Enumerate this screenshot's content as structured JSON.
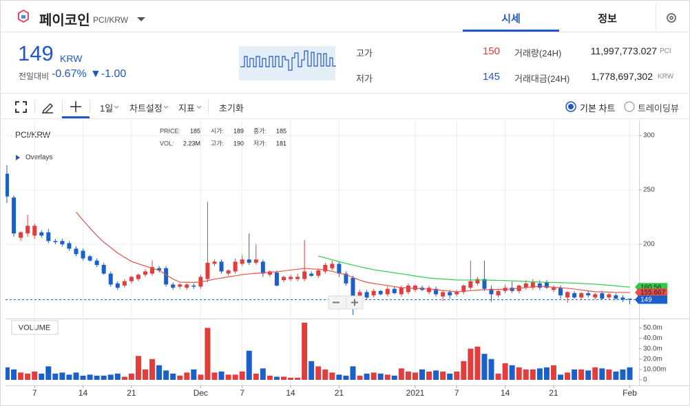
{
  "header": {
    "name": "페이코인",
    "pair": "PCI/KRW",
    "tabs": [
      "시세",
      "정보"
    ]
  },
  "ticker": {
    "price": 149,
    "unit": "KRW",
    "change_label": "전일대비",
    "change_pct": "-0.67%",
    "change_amt": "▼-1.00",
    "stats": [
      {
        "label": "고가",
        "value": 150,
        "color": "#e03b3b"
      },
      {
        "label": "저가",
        "value": 145,
        "color": "#1f56c9"
      }
    ],
    "volume": [
      {
        "label": "거래량(24H)",
        "value": "11,997,773.027",
        "unit": "PCI"
      },
      {
        "label": "거래대금(24H)",
        "value": "1,778,697,302",
        "unit": "KRW"
      }
    ]
  },
  "toolbar": {
    "menus": [
      "1일",
      "차트설정",
      "지표"
    ],
    "reset": "초기화",
    "modes": [
      "기본 차트",
      "트레이딩뷰"
    ],
    "selected_mode": 0
  },
  "chart_data": {
    "type": "candlestick",
    "title": "PCI/KRW",
    "overlays_label": "Overlays",
    "info": [
      {
        "label": "PRICE:",
        "value": 185
      },
      {
        "label": "시가:",
        "value": 189
      },
      {
        "label": "종가:",
        "value": 185
      },
      {
        "label": "VOL:",
        "value": "2.23M"
      },
      {
        "label": "고가:",
        "value": 190
      },
      {
        "label": "저가:",
        "value": 181
      }
    ],
    "categories": [
      null,
      null,
      null,
      null,
      "7",
      null,
      null,
      null,
      null,
      null,
      null,
      "14",
      null,
      null,
      null,
      null,
      null,
      null,
      "21",
      null,
      null,
      null,
      null,
      null,
      null,
      null,
      null,
      null,
      "Dec",
      null,
      null,
      null,
      null,
      null,
      "7",
      null,
      null,
      null,
      null,
      null,
      null,
      "14",
      null,
      null,
      null,
      null,
      null,
      null,
      "21",
      null,
      null,
      null,
      null,
      null,
      null,
      null,
      null,
      null,
      null,
      "2021",
      null,
      null,
      null,
      null,
      null,
      "7",
      null,
      null,
      null,
      null,
      null,
      null,
      "14",
      null,
      null,
      null,
      null,
      null,
      null,
      "21",
      null,
      null,
      null,
      null,
      null,
      null,
      null,
      null,
      null,
      null,
      "Feb"
    ],
    "open": [
      265,
      243,
      206,
      210,
      208,
      211,
      211,
      203,
      203,
      201,
      196,
      194,
      189,
      185,
      181,
      173,
      164,
      162,
      166,
      168,
      172,
      173,
      178,
      178,
      163,
      161,
      160,
      162,
      161,
      168,
      182,
      184,
      173,
      175,
      182,
      186,
      183,
      184,
      172,
      174,
      167,
      168,
      168,
      168,
      173,
      171,
      175,
      178,
      182,
      173,
      169,
      151,
      156,
      153,
      157,
      154,
      159,
      154,
      156,
      158,
      160,
      156,
      159,
      152,
      156,
      154,
      156,
      160,
      164,
      168,
      159,
      153,
      157,
      160,
      157,
      160,
      160,
      164,
      165,
      158,
      160,
      151,
      155,
      151,
      155,
      151,
      155,
      151,
      153,
      151,
      150
    ],
    "high": [
      273,
      245,
      212,
      227,
      219,
      213,
      214,
      205,
      205,
      203,
      198,
      196,
      190,
      187,
      183,
      175,
      166,
      168,
      171,
      173,
      177,
      185,
      180,
      180,
      165,
      164,
      164,
      164,
      172,
      239,
      186,
      186,
      177,
      187,
      190,
      210,
      200,
      186,
      176,
      176,
      171,
      172,
      173,
      204,
      175,
      178,
      183,
      185,
      184,
      175,
      171,
      158,
      158,
      159,
      158,
      161,
      161,
      162,
      164,
      163,
      162,
      162,
      161,
      158,
      158,
      158,
      163,
      185,
      170,
      185,
      162,
      158,
      163,
      166,
      163,
      167,
      168,
      167,
      167,
      162,
      162,
      157,
      157,
      156,
      157,
      155,
      157,
      155,
      155,
      153,
      150
    ],
    "low": [
      238,
      207,
      203,
      207,
      205,
      206,
      201,
      200,
      198,
      194,
      189,
      185,
      184,
      179,
      172,
      161,
      158,
      160,
      164,
      166,
      170,
      171,
      174,
      161,
      158,
      159,
      158,
      159,
      159,
      165,
      180,
      173,
      171,
      173,
      180,
      181,
      181,
      170,
      170,
      161,
      165,
      166,
      166,
      166,
      170,
      169,
      173,
      176,
      170,
      162,
      135,
      149,
      149,
      151,
      153,
      152,
      154,
      152,
      154,
      156,
      157,
      154,
      152,
      148,
      150,
      152,
      154,
      158,
      162,
      157,
      147,
      151,
      155,
      155,
      155,
      158,
      158,
      158,
      159,
      156,
      150,
      146,
      150,
      149,
      151,
      149,
      149,
      149,
      149,
      147,
      145
    ],
    "close": [
      244,
      210,
      211,
      217,
      217,
      208,
      203,
      202,
      200,
      196,
      191,
      187,
      185,
      181,
      173,
      163,
      160,
      166,
      170,
      172,
      175,
      179,
      176,
      163,
      160,
      163,
      163,
      161,
      170,
      183,
      184,
      175,
      176,
      184,
      186,
      183,
      186,
      173,
      175,
      162,
      170,
      170,
      170,
      175,
      171,
      176,
      181,
      182,
      173,
      164,
      149,
      156,
      151,
      157,
      154,
      159,
      155,
      160,
      162,
      162,
      158,
      160,
      154,
      156,
      153,
      156,
      162,
      166,
      168,
      159,
      154,
      157,
      160,
      157,
      162,
      164,
      165,
      160,
      160,
      160,
      153,
      156,
      151,
      155,
      153,
      154,
      150,
      154,
      150,
      149,
      149
    ],
    "up_color": "#e23d3d",
    "down_color": "#1b5fc9",
    "ylim": [
      131.6,
      314
    ],
    "yticks": [
      200,
      250,
      300
    ],
    "grid": true,
    "series": [
      {
        "color": "#e8504a",
        "values": [
          null,
          null,
          null,
          null,
          null,
          null,
          null,
          null,
          null,
          null,
          229.7,
          222,
          215,
          208,
          201.9,
          197,
          192,
          188,
          184.2,
          182,
          180,
          178,
          175.9,
          172,
          168,
          165.2,
          165,
          165,
          165.2,
          166.5,
          168,
          168.9,
          170,
          171,
          172,
          172.8,
          173.3,
          173.8,
          174.3,
          174.7,
          175.5,
          176.3,
          177,
          177.8,
          177.4,
          177,
          176.6,
          175,
          173.5,
          172,
          169.5,
          167,
          165,
          163.9,
          163,
          162,
          161,
          160.1,
          159.7,
          159.4,
          159.1,
          158.8,
          158.2,
          157.5,
          156.9,
          156.3,
          156.8,
          157.3,
          157.8,
          158.2,
          158.2,
          158.5,
          158.6,
          158.8,
          159.5,
          160.2,
          160.8,
          161.4,
          160.9,
          160.5,
          160,
          159.5,
          158.8,
          158,
          157.1,
          156.3,
          156.2,
          156,
          155.8,
          155.7,
          155.667
        ]
      },
      {
        "color": "#2fcc4a",
        "values": [
          null,
          null,
          null,
          null,
          null,
          null,
          null,
          null,
          null,
          null,
          null,
          null,
          null,
          null,
          null,
          null,
          null,
          null,
          null,
          null,
          null,
          null,
          null,
          null,
          null,
          null,
          null,
          null,
          null,
          null,
          null,
          null,
          null,
          null,
          null,
          null,
          null,
          null,
          null,
          null,
          null,
          null,
          null,
          null,
          null,
          189.2,
          187.5,
          185.8,
          184,
          182.3,
          180.9,
          179.4,
          178,
          176.6,
          175.6,
          174.7,
          173.7,
          172.8,
          171.8,
          170.8,
          169.9,
          168.9,
          168.5,
          168,
          167.6,
          167.1,
          167.1,
          167.1,
          167.1,
          167.1,
          166.9,
          166.8,
          166.6,
          166.4,
          166.1,
          165.8,
          165.5,
          165.2,
          165,
          164.9,
          164.7,
          164.5,
          164.2,
          163.9,
          163.6,
          163.3,
          162.8,
          162.3,
          161.7,
          161.1,
          160.56
        ]
      }
    ],
    "volume": {
      "title": "VOLUME",
      "values": [
        12,
        10,
        7,
        6,
        8,
        6,
        13,
        6,
        7,
        5,
        7,
        4,
        5,
        4,
        4,
        5,
        6,
        3,
        6,
        23,
        10,
        20,
        14,
        9,
        6,
        4,
        7,
        10,
        5,
        50,
        7,
        8,
        5,
        5,
        8,
        28,
        6,
        11,
        4,
        3,
        3,
        2,
        2,
        55,
        18,
        13,
        10,
        7,
        5,
        4,
        13,
        4,
        6,
        7,
        6,
        5,
        4,
        11,
        8,
        7,
        10,
        8,
        9,
        8,
        6,
        8,
        18,
        30,
        32,
        25,
        20,
        6,
        16,
        14,
        12,
        10,
        10,
        11,
        12,
        14,
        5,
        7,
        10,
        10,
        9,
        12,
        11,
        10,
        8,
        10,
        12
      ],
      "ylim": [
        -4,
        57.6
      ],
      "yticks": [
        0,
        {
          "value": 10,
          "label": "10.00m"
        },
        {
          "value": 20,
          "label": "20.0m"
        },
        {
          "value": 30,
          "label": "30.0m"
        },
        {
          "value": 40,
          "label": "40.0m"
        },
        {
          "value": 50,
          "label": "50.0m"
        }
      ]
    }
  }
}
